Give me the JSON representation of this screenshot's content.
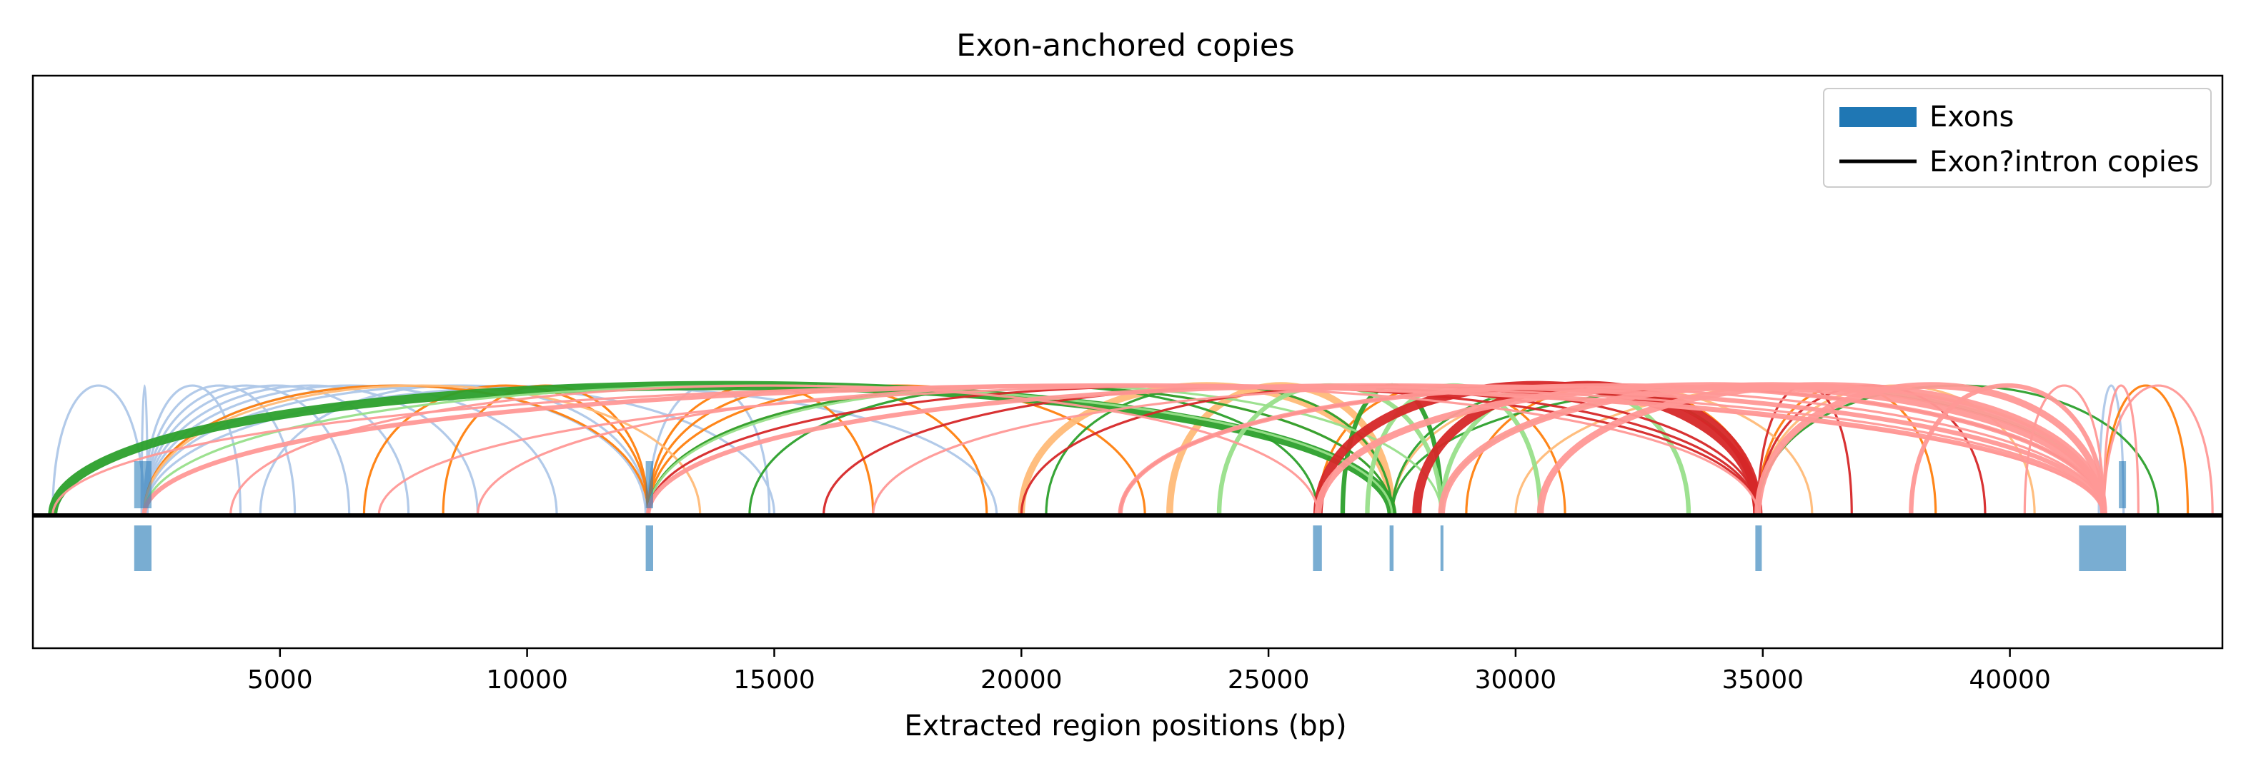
{
  "chart_data": {
    "type": "arc",
    "title": "Exon-anchored copies",
    "xlabel": "Extracted region positions (bp)",
    "ylabel": "",
    "xlim": [
      0,
      44300
    ],
    "xticks": [
      5000,
      10000,
      15000,
      20000,
      25000,
      30000,
      35000,
      40000
    ],
    "xtick_labels": [
      "5000",
      "10000",
      "15000",
      "20000",
      "25000",
      "30000",
      "35000",
      "40000"
    ],
    "grid": false,
    "legend_position": "top-right",
    "legend": [
      {
        "label": "Exons",
        "kind": "patch",
        "color": "#1f77b4"
      },
      {
        "label": "Exon?intron copies",
        "kind": "line",
        "color": "#000000"
      }
    ],
    "exons": [
      {
        "start": 2050,
        "end": 2400
      },
      {
        "start": 12400,
        "end": 12550
      },
      {
        "start": 25900,
        "end": 26080
      },
      {
        "start": 27450,
        "end": 27530
      },
      {
        "start": 28480,
        "end": 28540
      },
      {
        "start": 34850,
        "end": 34980
      },
      {
        "start": 41400,
        "end": 42350
      }
    ],
    "arc_colors": [
      "#aec7e8",
      "#ff7f0e",
      "#ffbb78",
      "#2ca02c",
      "#98df8a",
      "#d62728",
      "#ff9896"
    ],
    "arcs": [
      {
        "from": 400,
        "to": 2250,
        "color": "#aec7e8",
        "width": 1
      },
      {
        "from": 2250,
        "to": 4200,
        "color": "#aec7e8",
        "width": 1
      },
      {
        "from": 2250,
        "to": 5300,
        "color": "#aec7e8",
        "width": 1
      },
      {
        "from": 2250,
        "to": 6400,
        "color": "#aec7e8",
        "width": 1
      },
      {
        "from": 2250,
        "to": 7600,
        "color": "#aec7e8",
        "width": 1
      },
      {
        "from": 2250,
        "to": 9000,
        "color": "#aec7e8",
        "width": 1
      },
      {
        "from": 2250,
        "to": 10600,
        "color": "#aec7e8",
        "width": 1
      },
      {
        "from": 2250,
        "to": 12400,
        "color": "#aec7e8",
        "width": 1
      },
      {
        "from": 2250,
        "to": 15000,
        "color": "#aec7e8",
        "width": 1
      },
      {
        "from": 2250,
        "to": 19500,
        "color": "#aec7e8",
        "width": 1
      },
      {
        "from": 2200,
        "to": 2320,
        "color": "#aec7e8",
        "width": 1
      },
      {
        "from": 4600,
        "to": 12450,
        "color": "#aec7e8",
        "width": 1
      },
      {
        "from": 12450,
        "to": 14900,
        "color": "#aec7e8",
        "width": 1
      },
      {
        "from": 41800,
        "to": 42300,
        "color": "#aec7e8",
        "width": 1
      },
      {
        "from": 6700,
        "to": 12450,
        "color": "#ff7f0e",
        "width": 1
      },
      {
        "from": 8300,
        "to": 12450,
        "color": "#ff7f0e",
        "width": 1
      },
      {
        "from": 12450,
        "to": 17000,
        "color": "#ff7f0e",
        "width": 1
      },
      {
        "from": 12450,
        "to": 19300,
        "color": "#ff7f0e",
        "width": 1
      },
      {
        "from": 12450,
        "to": 22500,
        "color": "#ff7f0e",
        "width": 1
      },
      {
        "from": 2250,
        "to": 12450,
        "color": "#ff7f0e",
        "width": 1
      },
      {
        "from": 26000,
        "to": 31000,
        "color": "#ff7f0e",
        "width": 1
      },
      {
        "from": 34900,
        "to": 38500,
        "color": "#ff7f0e",
        "width": 1
      },
      {
        "from": 29000,
        "to": 34900,
        "color": "#ff7f0e",
        "width": 1
      },
      {
        "from": 41900,
        "to": 43600,
        "color": "#ff7f0e",
        "width": 1
      },
      {
        "from": 2250,
        "to": 13500,
        "color": "#ffbb78",
        "width": 1
      },
      {
        "from": 12450,
        "to": 27500,
        "color": "#ffbb78",
        "width": 1
      },
      {
        "from": 20000,
        "to": 27500,
        "color": "#ffbb78",
        "width": 3
      },
      {
        "from": 23000,
        "to": 27500,
        "color": "#ffbb78",
        "width": 3
      },
      {
        "from": 27500,
        "to": 36000,
        "color": "#ffbb78",
        "width": 1
      },
      {
        "from": 30000,
        "to": 41900,
        "color": "#ffbb78",
        "width": 1
      },
      {
        "from": 34900,
        "to": 40500,
        "color": "#ffbb78",
        "width": 1
      },
      {
        "from": 400,
        "to": 27500,
        "color": "#2ca02c",
        "width": 4
      },
      {
        "from": 12450,
        "to": 27500,
        "color": "#2ca02c",
        "width": 1
      },
      {
        "from": 20500,
        "to": 27500,
        "color": "#2ca02c",
        "width": 1
      },
      {
        "from": 27500,
        "to": 34900,
        "color": "#2ca02c",
        "width": 1
      },
      {
        "from": 27500,
        "to": 41900,
        "color": "#2ca02c",
        "width": 1
      },
      {
        "from": 26500,
        "to": 28500,
        "color": "#2ca02c",
        "width": 2
      },
      {
        "from": 14500,
        "to": 26000,
        "color": "#2ca02c",
        "width": 1
      },
      {
        "from": 34900,
        "to": 43000,
        "color": "#2ca02c",
        "width": 1
      },
      {
        "from": 2250,
        "to": 27500,
        "color": "#98df8a",
        "width": 1
      },
      {
        "from": 12450,
        "to": 28500,
        "color": "#98df8a",
        "width": 1
      },
      {
        "from": 24000,
        "to": 28500,
        "color": "#98df8a",
        "width": 2
      },
      {
        "from": 28500,
        "to": 33500,
        "color": "#98df8a",
        "width": 2
      },
      {
        "from": 27000,
        "to": 30500,
        "color": "#98df8a",
        "width": 2
      },
      {
        "from": 28500,
        "to": 41900,
        "color": "#98df8a",
        "width": 1
      },
      {
        "from": 12450,
        "to": 34900,
        "color": "#d62728",
        "width": 1
      },
      {
        "from": 16000,
        "to": 34900,
        "color": "#d62728",
        "width": 1
      },
      {
        "from": 20000,
        "to": 34900,
        "color": "#d62728",
        "width": 1
      },
      {
        "from": 26000,
        "to": 34900,
        "color": "#d62728",
        "width": 4
      },
      {
        "from": 28000,
        "to": 34900,
        "color": "#d62728",
        "width": 4
      },
      {
        "from": 34900,
        "to": 36800,
        "color": "#d62728",
        "width": 1
      },
      {
        "from": 34900,
        "to": 39500,
        "color": "#d62728",
        "width": 1
      },
      {
        "from": 22000,
        "to": 41900,
        "color": "#d62728",
        "width": 1
      },
      {
        "from": 400,
        "to": 41900,
        "color": "#ff9896",
        "width": 1
      },
      {
        "from": 2250,
        "to": 41900,
        "color": "#ff9896",
        "width": 2
      },
      {
        "from": 7000,
        "to": 41900,
        "color": "#ff9896",
        "width": 1
      },
      {
        "from": 12450,
        "to": 41900,
        "color": "#ff9896",
        "width": 2
      },
      {
        "from": 17000,
        "to": 41900,
        "color": "#ff9896",
        "width": 1
      },
      {
        "from": 22000,
        "to": 41900,
        "color": "#ff9896",
        "width": 2
      },
      {
        "from": 26000,
        "to": 41900,
        "color": "#ff9896",
        "width": 3
      },
      {
        "from": 28500,
        "to": 41900,
        "color": "#ff9896",
        "width": 3
      },
      {
        "from": 30500,
        "to": 41900,
        "color": "#ff9896",
        "width": 3
      },
      {
        "from": 34900,
        "to": 41900,
        "color": "#ff9896",
        "width": 3
      },
      {
        "from": 38000,
        "to": 41900,
        "color": "#ff9896",
        "width": 2
      },
      {
        "from": 40300,
        "to": 41900,
        "color": "#ff9896",
        "width": 1
      },
      {
        "from": 41900,
        "to": 42600,
        "color": "#ff9896",
        "width": 1
      },
      {
        "from": 41900,
        "to": 44100,
        "color": "#ff9896",
        "width": 1
      },
      {
        "from": 4000,
        "to": 26000,
        "color": "#ff9896",
        "width": 1
      },
      {
        "from": 9000,
        "to": 34900,
        "color": "#ff9896",
        "width": 1
      }
    ]
  }
}
